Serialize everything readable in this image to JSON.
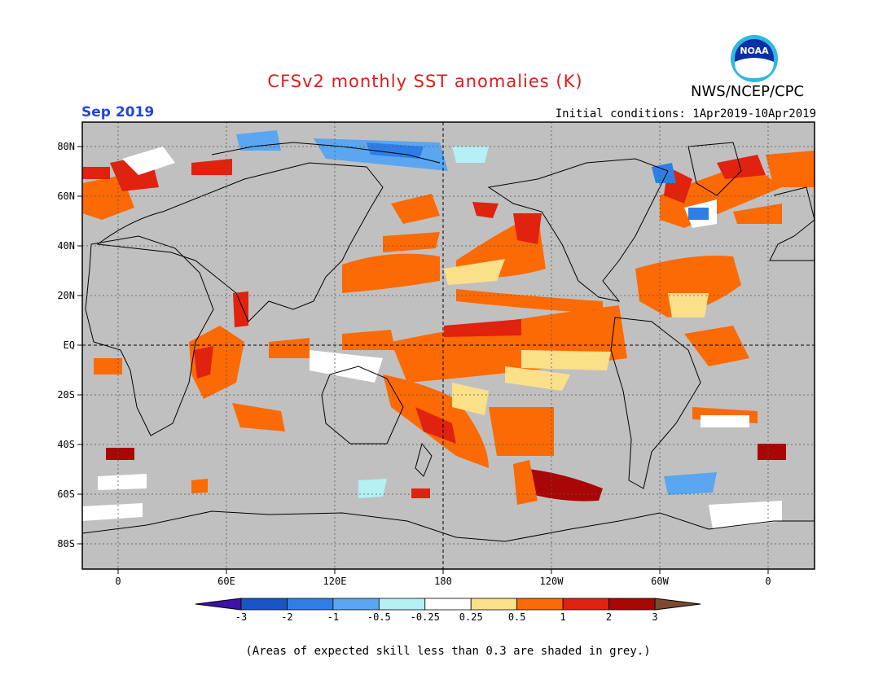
{
  "title": "CFSv2 monthly SST anomalies (K)",
  "organization": "NWS/NCEP/CPC",
  "logo_text": "NOAA",
  "valid_month": "Sep 2019",
  "initial_conditions": "Initial conditions: 1Apr2019-10Apr2019",
  "lat_labels": [
    "80N",
    "60N",
    "40N",
    "20N",
    "EQ",
    "20S",
    "40S",
    "60S",
    "80S"
  ],
  "lon_labels": [
    "0",
    "60E",
    "120E",
    "180",
    "120W",
    "60W",
    "0"
  ],
  "colorbar": {
    "labels": [
      "-3",
      "-2",
      "-1",
      "-0.5",
      "-0.25",
      "0.25",
      "0.5",
      "1",
      "2",
      "3"
    ],
    "colors": [
      "#3e12a6",
      "#1a55c8",
      "#2f7ee6",
      "#5aa6f0",
      "#b4f0f4",
      "#ffffff",
      "#fbe08a",
      "#fb6a04",
      "#e0220e",
      "#a90606",
      "#7a4b32"
    ]
  },
  "note": "(Areas of expected skill less than 0.3 are shaded in grey.)",
  "colors": {
    "grey_mask": "#c0c0c0",
    "title": "#e01a1a",
    "month": "#1f47d6"
  }
}
